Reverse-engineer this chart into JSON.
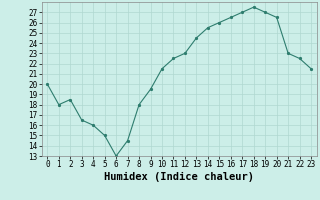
{
  "xlabel": "Humidex (Indice chaleur)",
  "ylabel": "",
  "x": [
    0,
    1,
    2,
    3,
    4,
    5,
    6,
    7,
    8,
    9,
    10,
    11,
    12,
    13,
    14,
    15,
    16,
    17,
    18,
    19,
    20,
    21,
    22,
    23
  ],
  "y": [
    20,
    18,
    18.5,
    16.5,
    16,
    15,
    13,
    14.5,
    18,
    19.5,
    21.5,
    22.5,
    23,
    24.5,
    25.5,
    26,
    26.5,
    27,
    27.5,
    27,
    26.5,
    23,
    22.5,
    21.5
  ],
  "ylim": [
    13,
    28
  ],
  "yticks": [
    13,
    14,
    15,
    16,
    17,
    18,
    19,
    20,
    21,
    22,
    23,
    24,
    25,
    26,
    27
  ],
  "line_color": "#2e7d6e",
  "marker": ".",
  "background_color": "#cceee8",
  "grid_color": "#b0d8d0",
  "tick_fontsize": 5.5,
  "label_fontsize": 7.5
}
